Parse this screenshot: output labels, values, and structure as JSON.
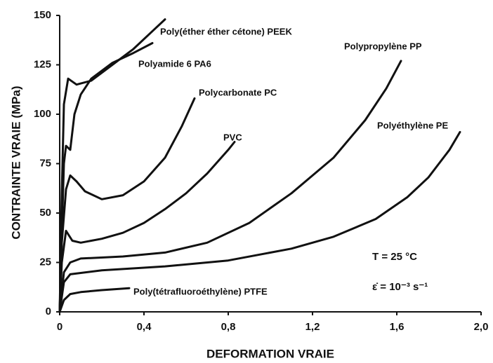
{
  "chart_data": {
    "type": "line",
    "xlabel": "DEFORMATION VRAIE",
    "ylabel": "CONTRAINTE VRAIE (MPa)",
    "xlim": [
      0,
      2
    ],
    "ylim": [
      0,
      150
    ],
    "xticks": [
      0,
      {
        "value": 0.4,
        "label": "0,4"
      },
      {
        "value": 0.8,
        "label": "0,8"
      },
      {
        "value": 1.2,
        "label": "1,2"
      },
      {
        "value": 1.6,
        "label": "1,6"
      },
      {
        "value": 2,
        "label": "2,0"
      }
    ],
    "yticks": [
      0,
      25,
      50,
      75,
      100,
      125,
      150
    ],
    "annotations": [
      "T = 25 °C",
      "ε̇ = 10⁻³ s⁻¹"
    ],
    "series": [
      {
        "name": "Poly(éther éther cétone) PEEK",
        "color": "#111111",
        "x": [
          0,
          0.01,
          0.02,
          0.04,
          0.08,
          0.15,
          0.25,
          0.35,
          0.45,
          0.5
        ],
        "values": [
          0,
          60,
          105,
          118,
          115,
          117,
          125,
          133,
          143,
          148
        ]
      },
      {
        "name": "Polyamide 6 PA6",
        "color": "#111111",
        "x": [
          0,
          0.01,
          0.02,
          0.03,
          0.05,
          0.07,
          0.1,
          0.15,
          0.25,
          0.35,
          0.44
        ],
        "values": [
          0,
          40,
          75,
          84,
          82,
          100,
          110,
          118,
          126,
          131,
          136
        ]
      },
      {
        "name": "Polycarbonate PC",
        "color": "#111111",
        "x": [
          0,
          0.01,
          0.03,
          0.05,
          0.08,
          0.12,
          0.2,
          0.3,
          0.4,
          0.5,
          0.58,
          0.64
        ],
        "values": [
          0,
          35,
          62,
          69,
          66,
          61,
          57,
          59,
          66,
          78,
          94,
          108
        ]
      },
      {
        "name": "PVC",
        "color": "#111111",
        "x": [
          0,
          0.01,
          0.03,
          0.06,
          0.1,
          0.2,
          0.3,
          0.4,
          0.5,
          0.6,
          0.7,
          0.8,
          0.83
        ],
        "values": [
          0,
          25,
          41,
          36,
          35,
          37,
          40,
          45,
          52,
          60,
          70,
          82,
          86
        ]
      },
      {
        "name": "Polypropylène PP",
        "color": "#111111",
        "x": [
          0,
          0.02,
          0.05,
          0.1,
          0.3,
          0.5,
          0.7,
          0.9,
          1.1,
          1.3,
          1.45,
          1.55,
          1.62
        ],
        "values": [
          0,
          20,
          25,
          27,
          28,
          30,
          35,
          45,
          60,
          78,
          97,
          113,
          127
        ]
      },
      {
        "name": "Polyéthylène PE",
        "color": "#111111",
        "x": [
          0,
          0.02,
          0.05,
          0.2,
          0.5,
          0.8,
          1.1,
          1.3,
          1.5,
          1.65,
          1.75,
          1.85,
          1.9
        ],
        "values": [
          0,
          15,
          19,
          21,
          23,
          26,
          32,
          38,
          47,
          58,
          68,
          82,
          91
        ]
      },
      {
        "name": "Poly(tétrafluoroéthylène) PTFE",
        "color": "#111111",
        "x": [
          0,
          0.02,
          0.05,
          0.1,
          0.2,
          0.33
        ],
        "values": [
          0,
          6,
          9,
          10,
          11,
          12
        ]
      }
    ]
  }
}
